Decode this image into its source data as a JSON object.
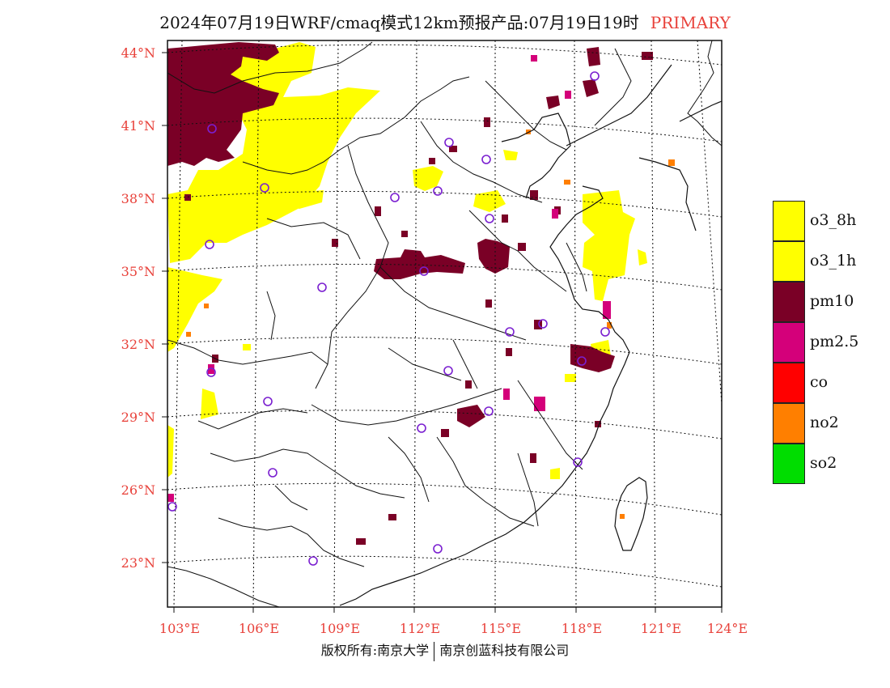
{
  "header": {
    "title": "2024年07月19日WRF/cmaq模式12km预报产品:07月19日19时",
    "tag": "PRIMARY"
  },
  "map": {
    "lat_labels": [
      "44°N",
      "41°N",
      "38°N",
      "35°N",
      "32°N",
      "29°N",
      "26°N",
      "23°N"
    ],
    "lon_labels": [
      "103°E",
      "106°E",
      "109°E",
      "112°E",
      "115°E",
      "118°E",
      "121°E",
      "124°E"
    ]
  },
  "legend": {
    "items": [
      {
        "label": "o3_8h",
        "color": "#ffff00"
      },
      {
        "label": "o3_1h",
        "color": "#ffff00"
      },
      {
        "label": "pm10",
        "color": "#7a0026"
      },
      {
        "label": "pm2.5",
        "color": "#d4007a"
      },
      {
        "label": "co",
        "color": "#ff0000"
      },
      {
        "label": "no2",
        "color": "#ff7f00"
      },
      {
        "label": "so2",
        "color": "#00dd00"
      }
    ]
  },
  "footer": {
    "left": "版权所有:南京大学",
    "right": "南京创蓝科技有限公司"
  }
}
